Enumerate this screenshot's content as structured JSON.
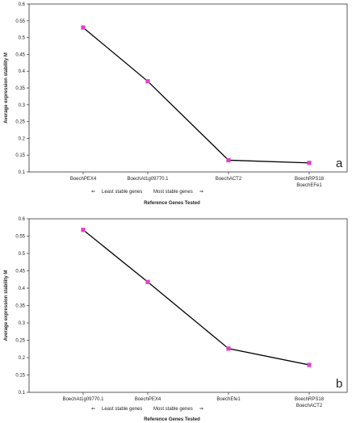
{
  "chart_data": [
    {
      "type": "line",
      "panel_label": "a",
      "ylabel": "Average expression stability M",
      "xlabel": "Reference Genes Tested",
      "categories": [
        [
          "BoechPEX4"
        ],
        [
          "BoechAt1g09770.1"
        ],
        [
          "BoechACT2"
        ],
        [
          "BoechRPS18",
          "BoechEFe1"
        ]
      ],
      "values": [
        0.53,
        0.37,
        0.135,
        0.127
      ],
      "yticks": [
        "0.6",
        "0.55",
        "0.5",
        "0.45",
        "0.4",
        "0.35",
        "0.3",
        "0.25",
        "0.2",
        "0.15",
        "0.1"
      ],
      "ylim": [
        0.1,
        0.6
      ],
      "least_stable_label": "Least stable genes",
      "most_stable_label": "Most stable genes",
      "arrow_left_glyph": "⇐",
      "arrow_right_glyph": "⇒",
      "line_color": "#000000",
      "marker_color": "#e040c8",
      "grid": false,
      "legend": "none"
    },
    {
      "type": "line",
      "panel_label": "b",
      "ylabel": "Average expression stability M",
      "xlabel": "Reference Genes Tested",
      "categories": [
        [
          "BoechAt1g09770.1"
        ],
        [
          "BoechPEX4"
        ],
        [
          "BoechEfe1"
        ],
        [
          "BoechRPS18",
          "BoechACT2"
        ]
      ],
      "values": [
        0.568,
        0.418,
        0.226,
        0.179
      ],
      "yticks": [
        "0.6",
        "0.55",
        "0.5",
        "0.45",
        "0.4",
        "0.35",
        "0.3",
        "0.25",
        "0.2",
        "0.15",
        "0.1"
      ],
      "ylim": [
        0.1,
        0.6
      ],
      "least_stable_label": "Least stable genes",
      "most_stable_label": "Most stable genes",
      "arrow_left_glyph": "⇐",
      "arrow_right_glyph": "⇒",
      "line_color": "#000000",
      "marker_color": "#e040c8",
      "grid": false,
      "legend": "none"
    }
  ]
}
